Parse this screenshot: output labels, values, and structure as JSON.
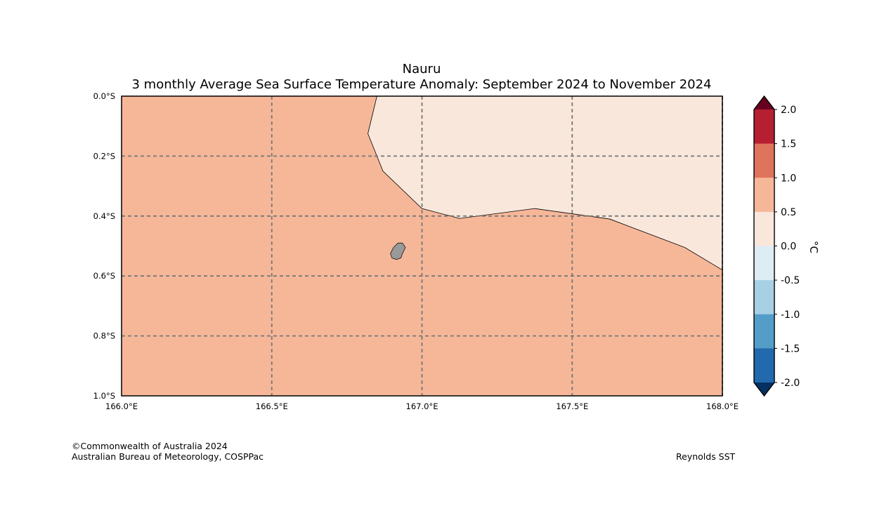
{
  "title": "Nauru",
  "subtitle": "3 monthly Average Sea Surface Temperature Anomaly: September 2024 to November 2024",
  "map": {
    "lon_range": [
      166.0,
      168.0
    ],
    "lat_range": [
      0.0,
      -1.0
    ],
    "lon_ticks": [
      {
        "value": 166.0,
        "label": "166.0°E"
      },
      {
        "value": 166.5,
        "label": "166.5°E"
      },
      {
        "value": 167.0,
        "label": "167.0°E"
      },
      {
        "value": 167.5,
        "label": "167.5°E"
      },
      {
        "value": 168.0,
        "label": "168.0°E"
      }
    ],
    "lat_ticks": [
      {
        "value": 0.0,
        "label": "0.0°S"
      },
      {
        "value": -0.2,
        "label": "0.2°S"
      },
      {
        "value": -0.4,
        "label": "0.4°S"
      },
      {
        "value": -0.6,
        "label": "0.6°S"
      },
      {
        "value": -0.8,
        "label": "0.8°S"
      },
      {
        "value": -1.0,
        "label": "1.0°S"
      }
    ],
    "gridlines": true,
    "background_anomaly_band": "0.5 to 1.0",
    "background_color": "#f6b799",
    "warm_region": {
      "anomaly_band": "0.0 to 0.5",
      "color": "#f9e7db",
      "boundary": [
        [
          166.85,
          0.0
        ],
        [
          166.82,
          -0.125
        ],
        [
          166.87,
          -0.25
        ],
        [
          167.0,
          -0.375
        ],
        [
          167.125,
          -0.408
        ],
        [
          167.375,
          -0.375
        ],
        [
          167.625,
          -0.41
        ],
        [
          167.875,
          -0.505
        ],
        [
          168.0,
          -0.58
        ]
      ]
    },
    "island": {
      "name_hidden": "Nauru",
      "color": "#999999",
      "outline": [
        [
          166.905,
          -0.505
        ],
        [
          166.92,
          -0.49
        ],
        [
          166.935,
          -0.49
        ],
        [
          166.945,
          -0.505
        ],
        [
          166.935,
          -0.525
        ],
        [
          166.93,
          -0.54
        ],
        [
          166.915,
          -0.545
        ],
        [
          166.9,
          -0.54
        ],
        [
          166.895,
          -0.525
        ]
      ]
    }
  },
  "colorbar": {
    "unit": "°C",
    "labels": [
      "2.0",
      "1.5",
      "1.0",
      "0.5",
      "0.0",
      "-0.5",
      "-1.0",
      "-1.5",
      "-2.0"
    ],
    "over_color": "#67001f",
    "under_color": "#053061",
    "bands": [
      {
        "range": [
          1.5,
          2.0
        ],
        "color": "#b61f32"
      },
      {
        "range": [
          1.0,
          1.5
        ],
        "color": "#e0735b"
      },
      {
        "range": [
          0.5,
          1.0
        ],
        "color": "#f6b799"
      },
      {
        "range": [
          0.0,
          0.5
        ],
        "color": "#f9e7db"
      },
      {
        "range": [
          -0.5,
          0.0
        ],
        "color": "#deecf3"
      },
      {
        "range": [
          -1.0,
          -0.5
        ],
        "color": "#a7d0e4"
      },
      {
        "range": [
          -1.5,
          -1.0
        ],
        "color": "#559dc9"
      },
      {
        "range": [
          -2.0,
          -1.5
        ],
        "color": "#2369ad"
      }
    ]
  },
  "footer": {
    "copyright": "©Commonwealth of Australia 2024",
    "agency": "Australian Bureau of Meteorology, COSPPac",
    "source": "Reynolds SST"
  }
}
